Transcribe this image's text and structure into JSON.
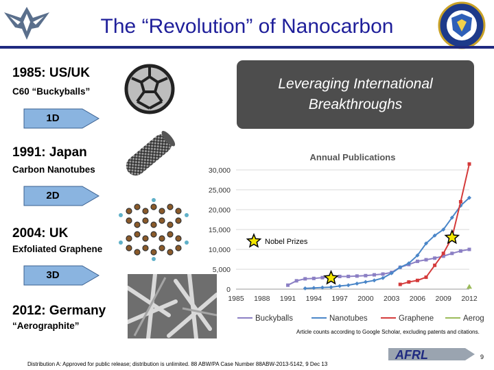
{
  "slide": {
    "title": "The “Revolution” of Nanocarbon",
    "callout": "Leveraging International Breakthroughs",
    "footnote": "Article counts according to Google Scholar, excluding patents and citations.",
    "distribution": "Distribution A: Approved for public release; distribution is unlimited. 88 ABW/PA Case Number 88ABW-2013-5142, 9 Dec 13",
    "slide_number": "9",
    "logo_text": "AFRL"
  },
  "timeline": [
    {
      "heading": "1985: US/UK",
      "sub": "C60 “Buckyballs”",
      "arrow": "1D"
    },
    {
      "heading": "1991: Japan",
      "sub": "Carbon Nanotubes",
      "arrow": "2D"
    },
    {
      "heading": "2004: UK",
      "sub": "Exfoliated Graphene",
      "arrow": "3D"
    },
    {
      "heading": "2012: Germany",
      "sub": "“Aerographite”"
    }
  ],
  "icons": [
    "air-force-wings-logo",
    "afmc-shield-emblem",
    "buckyball-image",
    "nanotube-image",
    "graphene-image",
    "aerographite-image",
    "star-icon"
  ],
  "colors": {
    "buckyballs": "#8b7fc4",
    "nanotubes": "#4a86c8",
    "graphene": "#d43a3a",
    "aerographite": "#9bbb59",
    "title": "#1f1f9a"
  },
  "chart_data": {
    "type": "line",
    "title": "Annual Publications",
    "x_ticks": [
      "1985",
      "1988",
      "1991",
      "1994",
      "1997",
      "2000",
      "2003",
      "2006",
      "2009",
      "2012"
    ],
    "y_ticks": [
      "0",
      "5,000",
      "10,000",
      "15,000",
      "20,000",
      "25,000",
      "30,000"
    ],
    "ylim": [
      0,
      30000
    ],
    "xlim": [
      1985,
      2012
    ],
    "grid": true,
    "legend": "bottom",
    "annotation": "Nobel Prizes",
    "stars": [
      {
        "x": 1996,
        "y": 2800
      },
      {
        "x": 2010,
        "y": 13000
      }
    ],
    "series": [
      {
        "name": "Buckyballs",
        "color": "#8b7fc4",
        "x": [
          1991,
          1992,
          1993,
          1994,
          1995,
          1996,
          1997,
          1998,
          1999,
          2000,
          2001,
          2002,
          2003,
          2004,
          2005,
          2006,
          2007,
          2008,
          2009,
          2010,
          2011,
          2012
        ],
        "y": [
          1000,
          2100,
          2600,
          2700,
          2900,
          3000,
          3200,
          3200,
          3300,
          3400,
          3600,
          3800,
          4200,
          5500,
          6200,
          7000,
          7400,
          7800,
          8300,
          9000,
          9600,
          10000
        ]
      },
      {
        "name": "Nanotubes",
        "color": "#4a86c8",
        "x": [
          1993,
          1994,
          1995,
          1996,
          1997,
          1998,
          1999,
          2000,
          2001,
          2002,
          2003,
          2004,
          2005,
          2006,
          2007,
          2008,
          2009,
          2010,
          2011,
          2012
        ],
        "y": [
          200,
          300,
          400,
          500,
          800,
          1000,
          1400,
          1800,
          2200,
          2800,
          4000,
          5500,
          6500,
          8500,
          11500,
          13500,
          15000,
          18000,
          21000,
          23000
        ]
      },
      {
        "name": "Graphene",
        "color": "#d43a3a",
        "x": [
          2004,
          2005,
          2006,
          2007,
          2008,
          2009,
          2010,
          2011,
          2012
        ],
        "y": [
          1200,
          1800,
          2200,
          3000,
          6000,
          9000,
          13000,
          22000,
          31500
        ]
      },
      {
        "name": "Aerographite",
        "color": "#9bbb59",
        "x": [
          2012
        ],
        "y": [
          100
        ]
      }
    ]
  }
}
